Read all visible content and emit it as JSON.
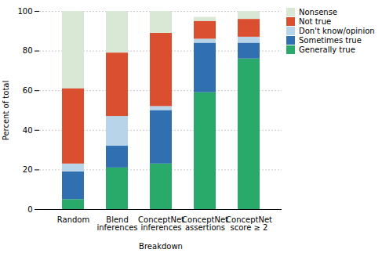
{
  "chart_data": {
    "type": "bar",
    "stacked": true,
    "categories": [
      "Random",
      "Blend\ninferences",
      "ConceptNet\ninferences",
      "ConceptNet\nassertions",
      "ConceptNet\nscore ≥ 2"
    ],
    "xlabel": "Breakdown",
    "ylabel": "Percent of total",
    "ylim": [
      0,
      100
    ],
    "yticks": [
      0,
      20,
      40,
      60,
      80,
      100
    ],
    "grid": true,
    "legend": "upper right",
    "series": [
      {
        "name": "Generally true",
        "color": "#2aaa6a",
        "values": [
          5,
          21,
          23,
          59,
          76
        ]
      },
      {
        "name": "Sometimes true",
        "color": "#3070b0",
        "values": [
          14,
          11,
          27,
          25,
          8
        ]
      },
      {
        "name": "Don't know/opinion",
        "color": "#b8d4e8",
        "values": [
          4,
          15,
          2,
          2,
          3
        ]
      },
      {
        "name": "Not true",
        "color": "#d94f30",
        "values": [
          38,
          32,
          37,
          9,
          9
        ]
      },
      {
        "name": "Nonsense",
        "color": "#d8e8d4",
        "values": [
          39,
          21,
          11,
          2,
          4
        ]
      }
    ]
  }
}
